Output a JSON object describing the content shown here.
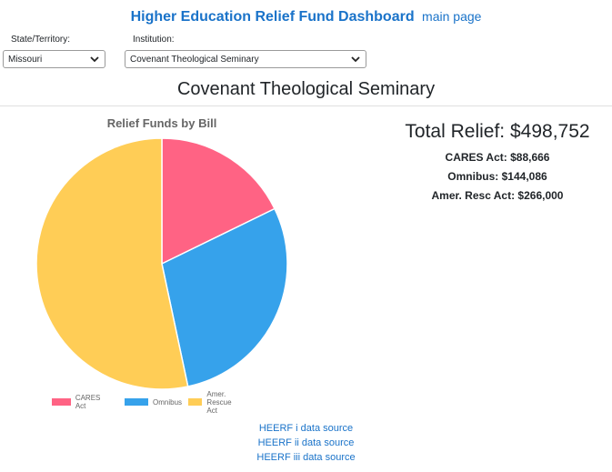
{
  "header": {
    "title": "Higher Education Relief Fund Dashboard",
    "main_page_link": "main page"
  },
  "filters": {
    "state_label": "State/Territory:",
    "state_value": "Missouri",
    "institution_label": "Institution:",
    "institution_value": "Covenant Theological Seminary"
  },
  "institution_name": "Covenant Theological Seminary",
  "totals": {
    "total": "Total Relief: $498,752",
    "cares": "CARES Act: $88,666",
    "omnibus": "Omnibus: $144,086",
    "arp": "Amer. Resc Act: $266,000"
  },
  "chart_data": {
    "type": "pie",
    "title": "Relief Funds by Bill",
    "categories": [
      "CARES Act",
      "Omnibus",
      "Amer. Rescue Act"
    ],
    "values": [
      88666,
      144086,
      266000
    ],
    "colors": [
      "#ff6384",
      "#36a2eb",
      "#ffcd56"
    ],
    "legend_position": "bottom"
  },
  "sources": [
    "HEERF i data source",
    "HEERF ii data source",
    "HEERF iii data source"
  ]
}
